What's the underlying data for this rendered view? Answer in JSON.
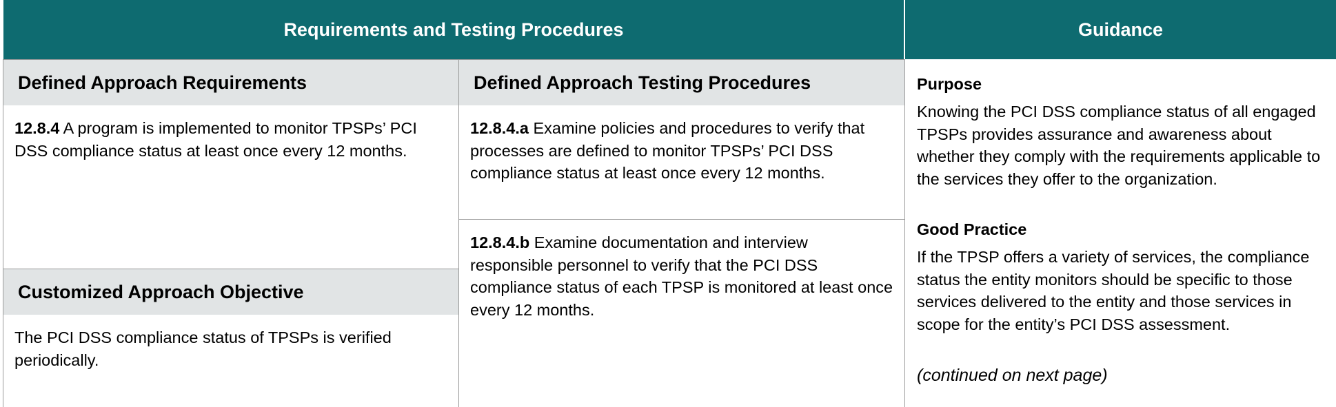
{
  "header": {
    "left_title": "Requirements and Testing Procedures",
    "right_title": "Guidance"
  },
  "columns": {
    "requirements_title": "Defined Approach Requirements",
    "testing_title": "Defined Approach Testing Procedures"
  },
  "requirement": {
    "id": "12.8.4",
    "text": " A program is implemented to monitor TPSPs’ PCI DSS compliance status at least once every 12 months."
  },
  "customized": {
    "title": "Customized Approach Objective",
    "text": "The PCI DSS compliance status of TPSPs is verified periodically."
  },
  "testing": [
    {
      "id": "12.8.4.a",
      "text": " Examine policies and procedures to verify that processes are defined to monitor TPSPs’ PCI DSS compliance status at least once every 12 months."
    },
    {
      "id": "12.8.4.b",
      "text": " Examine documentation and interview responsible personnel to verify that the PCI DSS compliance status of each TPSP is monitored at least once every 12 months."
    }
  ],
  "guidance": {
    "purpose_title": "Purpose",
    "purpose_text": "Knowing the PCI DSS compliance status of all engaged TPSPs provides assurance and awareness about whether they comply with the requirements applicable to the services they offer to the organization.",
    "practice_title": "Good Practice",
    "practice_text": "If the TPSP offers a variety of services, the compliance status the entity monitors should be specific to those services delivered to the entity and those services in scope for the entity’s PCI DSS assessment.",
    "continued": "(continued on next page)"
  },
  "colors": {
    "header_bg": "#0e6b70",
    "subhead_bg": "#e1e4e5",
    "grid_line": "#9a9a9a"
  }
}
